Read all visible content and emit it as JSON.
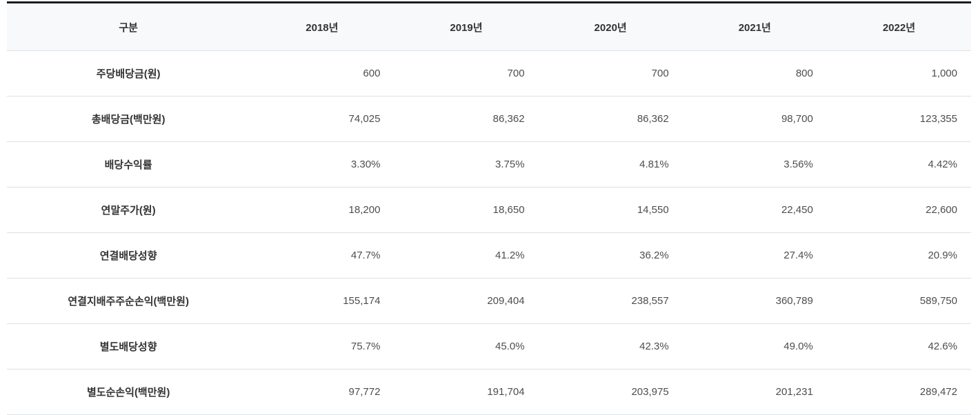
{
  "table": {
    "columns": [
      "구분",
      "2018년",
      "2019년",
      "2020년",
      "2021년",
      "2022년"
    ],
    "rows": [
      {
        "label": "주당배당금(원)",
        "values": [
          "600",
          "700",
          "700",
          "800",
          "1,000"
        ]
      },
      {
        "label": "총배당금(백만원)",
        "values": [
          "74,025",
          "86,362",
          "86,362",
          "98,700",
          "123,355"
        ]
      },
      {
        "label": "배당수익률",
        "values": [
          "3.30%",
          "3.75%",
          "4.81%",
          "3.56%",
          "4.42%"
        ]
      },
      {
        "label": "연말주가(원)",
        "values": [
          "18,200",
          "18,650",
          "14,550",
          "22,450",
          "22,600"
        ]
      },
      {
        "label": "연결배당성향",
        "values": [
          "47.7%",
          "41.2%",
          "36.2%",
          "27.4%",
          "20.9%"
        ]
      },
      {
        "label": "연결지배주주순손익(백만원)",
        "values": [
          "155,174",
          "209,404",
          "238,557",
          "360,789",
          "589,750"
        ]
      },
      {
        "label": "별도배당성향",
        "values": [
          "75.7%",
          "45.0%",
          "42.3%",
          "49.0%",
          "42.6%"
        ]
      },
      {
        "label": "별도순손익(백만원)",
        "values": [
          "97,772",
          "191,704",
          "203,975",
          "201,231",
          "289,472"
        ]
      }
    ],
    "colors": {
      "top_border": "#1b1b1b",
      "header_background": "#f8f9fb",
      "row_divider": "#d9e1e8",
      "label_text": "#333333",
      "value_text": "#4d4d4d"
    }
  }
}
